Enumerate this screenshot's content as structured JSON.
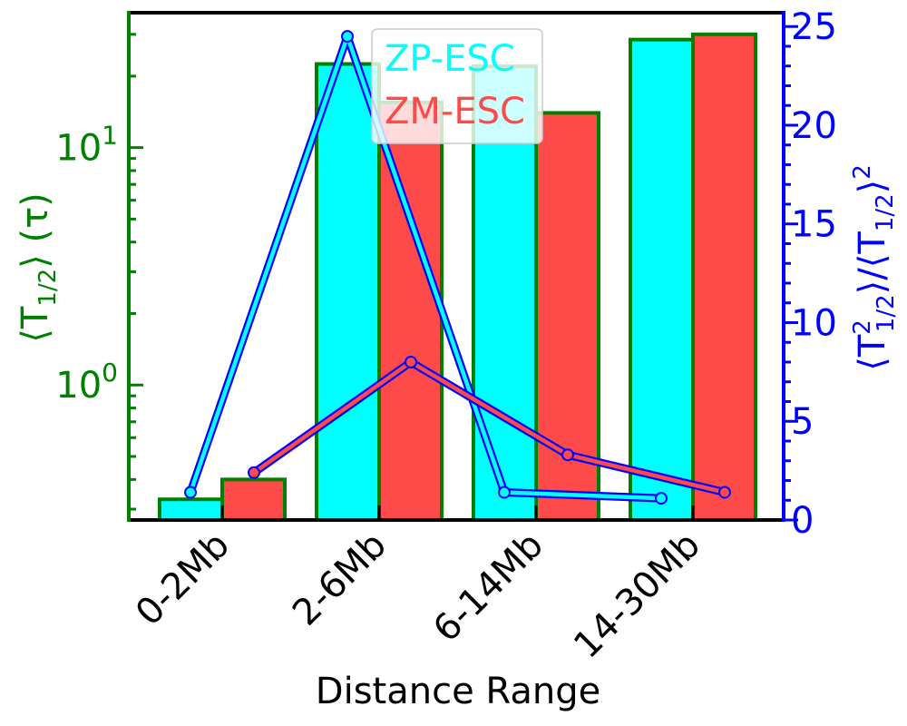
{
  "chart_data": {
    "type": "bar",
    "xlabel": "Distance Range",
    "categories": [
      "0-2Mb",
      "2-6Mb",
      "6-14Mb",
      "14-30Mb"
    ],
    "left_axis": {
      "label_parts": [
        "⟨T",
        "1/2",
        "⟩ (τ)"
      ],
      "scale": "log",
      "ylim": [
        0.27,
        37
      ],
      "tick_labels": [
        {
          "base": "10",
          "exp": "0",
          "value": 1
        },
        {
          "base": "10",
          "exp": "1",
          "value": 10
        }
      ],
      "color": "#008000"
    },
    "right_axis": {
      "label_parts": [
        "⟨T",
        "2",
        "1/2",
        "⟩/⟨T",
        "1/2",
        "⟩",
        "2"
      ],
      "scale": "linear",
      "ylim": [
        0,
        25.7
      ],
      "ticks": [
        0,
        5,
        10,
        15,
        20,
        25
      ],
      "tick_labels": [
        "0",
        "5",
        "10",
        "15",
        "20",
        "25"
      ],
      "color": "#0000ff"
    },
    "bar_series": [
      {
        "name": "ZP-ESC",
        "color": "#00ffff",
        "values": [
          0.33,
          22.5,
          22.0,
          28.5
        ]
      },
      {
        "name": "ZM-ESC",
        "color": "#ff4a4a",
        "values": [
          0.4,
          15.5,
          14.0,
          30.0
        ]
      }
    ],
    "line_series": [
      {
        "ref": "ZP-ESC",
        "color": "#00ffff",
        "values": [
          1.4,
          24.5,
          1.4,
          1.1
        ]
      },
      {
        "ref": "ZM-ESC",
        "color": "#ff4a4a",
        "values": [
          2.4,
          8.0,
          3.3,
          1.4
        ]
      }
    ],
    "legend": {
      "placement": "top-center",
      "entries": [
        "ZP-ESC",
        "ZM-ESC"
      ]
    },
    "grid": false
  }
}
